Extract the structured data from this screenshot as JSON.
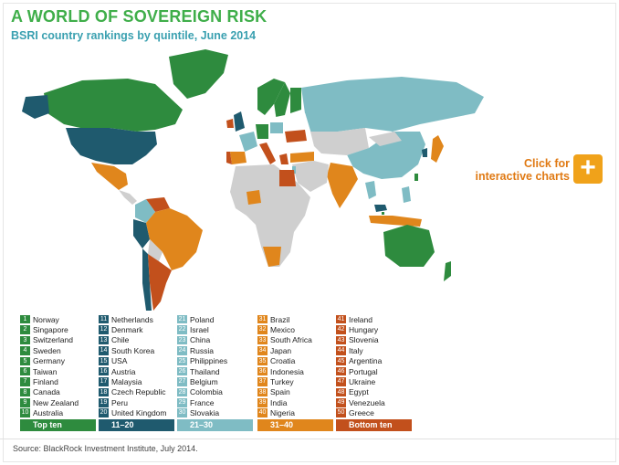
{
  "title": "A WORLD OF SOVEREIGN RISK",
  "subtitle": "BSRI country rankings by quintile, June 2014",
  "cta": {
    "line1": "Click for",
    "line2": "interactive charts",
    "icon": "plus-icon",
    "symbol": "+"
  },
  "source": "Source: BlackRock Investment Institute, July 2014.",
  "colors": {
    "q1": "#2e8b3e",
    "q2": "#1f5a6e",
    "q3": "#7fbcc4",
    "q4": "#e0861c",
    "q5": "#c2501c",
    "nodata": "#cfcfcf"
  },
  "quintiles": [
    {
      "footer": "Top ten",
      "color": "#2e8b3e",
      "entries": [
        {
          "rank": "1",
          "country": "Norway"
        },
        {
          "rank": "2",
          "country": "Singapore"
        },
        {
          "rank": "3",
          "country": "Switzerland"
        },
        {
          "rank": "4",
          "country": "Sweden"
        },
        {
          "rank": "5",
          "country": "Germany"
        },
        {
          "rank": "6",
          "country": "Taiwan"
        },
        {
          "rank": "7",
          "country": "Finland"
        },
        {
          "rank": "8",
          "country": "Canada"
        },
        {
          "rank": "9",
          "country": "New Zealand"
        },
        {
          "rank": "10",
          "country": "Australia"
        }
      ]
    },
    {
      "footer": "11–20",
      "color": "#1f5a6e",
      "entries": [
        {
          "rank": "11",
          "country": "Netherlands"
        },
        {
          "rank": "12",
          "country": "Denmark"
        },
        {
          "rank": "13",
          "country": "Chile"
        },
        {
          "rank": "14",
          "country": "South Korea"
        },
        {
          "rank": "15",
          "country": "USA"
        },
        {
          "rank": "16",
          "country": "Austria"
        },
        {
          "rank": "17",
          "country": "Malaysia"
        },
        {
          "rank": "18",
          "country": "Czech Republic"
        },
        {
          "rank": "19",
          "country": "Peru"
        },
        {
          "rank": "20",
          "country": "United Kingdom"
        }
      ]
    },
    {
      "footer": "21–30",
      "color": "#7fbcc4",
      "entries": [
        {
          "rank": "21",
          "country": "Poland"
        },
        {
          "rank": "22",
          "country": "Israel"
        },
        {
          "rank": "23",
          "country": "China"
        },
        {
          "rank": "24",
          "country": "Russia"
        },
        {
          "rank": "25",
          "country": "Philippines"
        },
        {
          "rank": "26",
          "country": "Thailand"
        },
        {
          "rank": "27",
          "country": "Belgium"
        },
        {
          "rank": "28",
          "country": "Colombia"
        },
        {
          "rank": "29",
          "country": "France"
        },
        {
          "rank": "30",
          "country": "Slovakia"
        }
      ]
    },
    {
      "footer": "31–40",
      "color": "#e0861c",
      "entries": [
        {
          "rank": "31",
          "country": "Brazil"
        },
        {
          "rank": "32",
          "country": "Mexico"
        },
        {
          "rank": "33",
          "country": "South Africa"
        },
        {
          "rank": "34",
          "country": "Japan"
        },
        {
          "rank": "35",
          "country": "Croatia"
        },
        {
          "rank": "36",
          "country": "Indonesia"
        },
        {
          "rank": "37",
          "country": "Turkey"
        },
        {
          "rank": "38",
          "country": "Spain"
        },
        {
          "rank": "39",
          "country": "India"
        },
        {
          "rank": "40",
          "country": "Nigeria"
        }
      ]
    },
    {
      "footer": "Bottom ten",
      "color": "#c2501c",
      "entries": [
        {
          "rank": "41",
          "country": "Ireland"
        },
        {
          "rank": "42",
          "country": "Hungary"
        },
        {
          "rank": "43",
          "country": "Slovenia"
        },
        {
          "rank": "44",
          "country": "Italy"
        },
        {
          "rank": "45",
          "country": "Argentina"
        },
        {
          "rank": "46",
          "country": "Portugal"
        },
        {
          "rank": "47",
          "country": "Ukraine"
        },
        {
          "rank": "48",
          "country": "Egypt"
        },
        {
          "rank": "49",
          "country": "Venezuela"
        },
        {
          "rank": "50",
          "country": "Greece"
        }
      ]
    }
  ]
}
